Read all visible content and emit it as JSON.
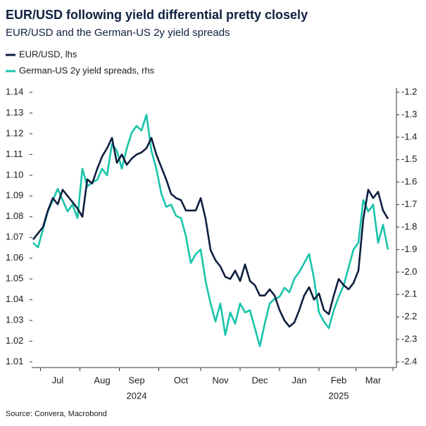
{
  "chart_data": {
    "type": "line",
    "title": "EUR/USD following yield differential pretty closely",
    "subtitle": "EUR/USD and the German-US 2y yield spreads",
    "source": "Source: Convera, Macrobond",
    "categories": [
      null,
      null,
      null,
      null,
      null,
      "Jul",
      null,
      null,
      null,
      null,
      null,
      null,
      null,
      null,
      "Aug",
      null,
      null,
      null,
      null,
      null,
      null,
      "Sep",
      null,
      null,
      null,
      null,
      null,
      null,
      null,
      null,
      "Oct",
      null,
      null,
      null,
      null,
      null,
      null,
      null,
      "Nov",
      null,
      null,
      null,
      null,
      null,
      null,
      null,
      "Dec",
      null,
      null,
      null,
      null,
      null,
      null,
      null,
      "Jan",
      null,
      null,
      null,
      null,
      null,
      null,
      null,
      "Feb",
      null,
      null,
      null,
      null,
      null,
      null,
      "Mar",
      null,
      null,
      null
    ],
    "years": [
      null,
      null,
      null,
      null,
      null,
      null,
      null,
      null,
      null,
      null,
      null,
      null,
      null,
      null,
      null,
      null,
      null,
      null,
      null,
      null,
      null,
      "2024",
      null,
      null,
      null,
      null,
      null,
      null,
      null,
      null,
      null,
      null,
      null,
      null,
      null,
      null,
      null,
      null,
      null,
      null,
      null,
      null,
      null,
      null,
      null,
      null,
      null,
      null,
      null,
      null,
      null,
      null,
      null,
      null,
      null,
      null,
      null,
      null,
      null,
      null,
      null,
      null,
      "2025",
      null,
      null,
      null,
      null,
      null,
      null,
      null,
      null,
      null,
      null
    ],
    "series": [
      {
        "name": "EUR/USD, lhs",
        "color": "#0e1f3f",
        "values": [
          1.069,
          1.072,
          1.075,
          1.083,
          1.089,
          1.086,
          1.093,
          1.09,
          1.087,
          1.084,
          1.08,
          1.098,
          1.096,
          1.103,
          1.109,
          1.113,
          1.118,
          1.106,
          1.11,
          1.105,
          1.108,
          1.11,
          1.111,
          1.113,
          1.118,
          1.11,
          1.104,
          1.098,
          1.091,
          1.089,
          1.088,
          1.083,
          1.083,
          1.083,
          1.089,
          1.079,
          1.064,
          1.059,
          1.056,
          1.051,
          1.05,
          1.054,
          1.049,
          1.057,
          1.049,
          1.047,
          1.042,
          1.042,
          1.045,
          1.042,
          1.035,
          1.03,
          1.027,
          1.029,
          1.035,
          1.042,
          1.046,
          1.04,
          1.043,
          1.035,
          1.033,
          1.042,
          1.05,
          1.047,
          1.045,
          1.048,
          1.054,
          1.079,
          1.093,
          1.089,
          1.092,
          1.083,
          1.079
        ]
      },
      {
        "name": "German-US 2y yield spreads, rhs",
        "color": "#19c4aa",
        "axis": "y2",
        "values": [
          -1.87,
          -1.89,
          -1.81,
          -1.73,
          -1.68,
          -1.63,
          -1.68,
          -1.73,
          -1.7,
          -1.76,
          -1.54,
          -1.62,
          -1.6,
          -1.59,
          -1.54,
          -1.57,
          -1.43,
          -1.46,
          -1.54,
          -1.45,
          -1.38,
          -1.35,
          -1.37,
          -1.3,
          -1.46,
          -1.54,
          -1.65,
          -1.71,
          -1.7,
          -1.75,
          -1.76,
          -1.84,
          -1.96,
          -1.92,
          -1.9,
          -2.04,
          -2.14,
          -2.22,
          -2.14,
          -2.28,
          -2.18,
          -2.23,
          -2.14,
          -2.18,
          -2.17,
          -2.25,
          -2.33,
          -2.23,
          -2.14,
          -2.12,
          -2.11,
          -2.07,
          -2.09,
          -2.03,
          -2.0,
          -1.96,
          -1.92,
          -2.03,
          -2.18,
          -2.22,
          -2.25,
          -2.17,
          -2.11,
          -2.06,
          -1.98,
          -1.9,
          -1.87,
          -1.68,
          -1.73,
          -1.7,
          -1.87,
          -1.79,
          -1.9
        ]
      }
    ],
    "ylim": [
      1.01,
      1.14
    ],
    "yticks": [
      1.01,
      1.02,
      1.03,
      1.04,
      1.05,
      1.06,
      1.07,
      1.08,
      1.09,
      {
        "value": 1.1,
        "label": "1.10"
      },
      1.11,
      1.12,
      1.13,
      1.14
    ],
    "y2lim": [
      -2.4,
      -1.2
    ],
    "y2ticks": [
      -2.4,
      -2.3,
      -2.2,
      -2.1,
      {
        "value": -2,
        "label": "-2.0"
      },
      -1.9,
      -1.8,
      -1.7,
      -1.6,
      -1.5,
      -1.4,
      -1.3,
      -1.2
    ],
    "grid": false
  }
}
